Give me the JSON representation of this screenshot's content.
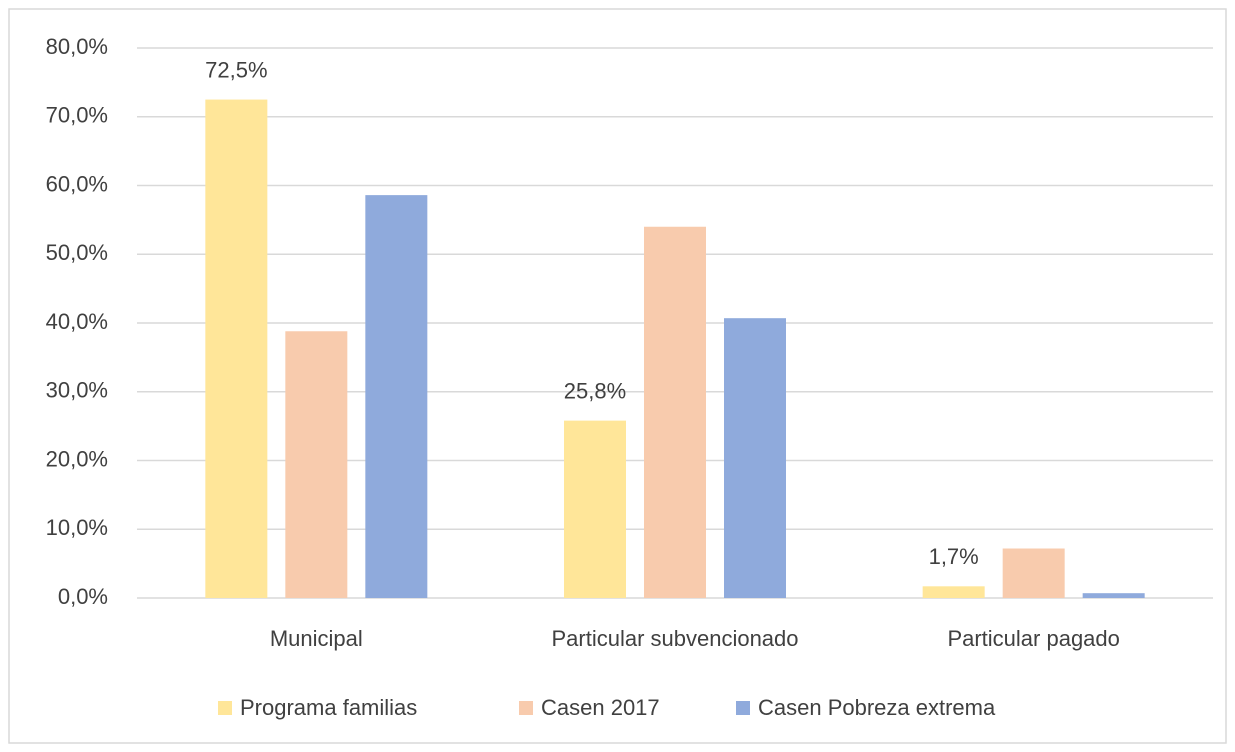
{
  "chart_data": {
    "type": "bar",
    "categories": [
      "Municipal",
      "Particular subvencionado",
      "Particular pagado"
    ],
    "series": [
      {
        "name": "Programa familias",
        "color": "#ffe699",
        "values": [
          72.5,
          25.8,
          1.7
        ],
        "value_labels": [
          "72,5%",
          "25,8%",
          "1,7%"
        ]
      },
      {
        "name": "Casen 2017",
        "color": "#f8cbad",
        "values": [
          38.8,
          54.0,
          7.2
        ]
      },
      {
        "name": "Casen Pobreza extrema",
        "color": "#8faadc",
        "values": [
          58.6,
          40.7,
          0.7
        ]
      }
    ],
    "ylim": [
      0,
      80
    ],
    "yticks": [
      {
        "value": 0,
        "label": "0,0%"
      },
      {
        "value": 10,
        "label": "10,0%"
      },
      {
        "value": 20,
        "label": "20,0%"
      },
      {
        "value": 30,
        "label": "30,0%"
      },
      {
        "value": 40,
        "label": "40,0%"
      },
      {
        "value": 50,
        "label": "50,0%"
      },
      {
        "value": 60,
        "label": "60,0%"
      },
      {
        "value": 70,
        "label": "70,0%"
      },
      {
        "value": 80,
        "label": "80,0%"
      }
    ],
    "grid": true,
    "legend": "bottom"
  }
}
